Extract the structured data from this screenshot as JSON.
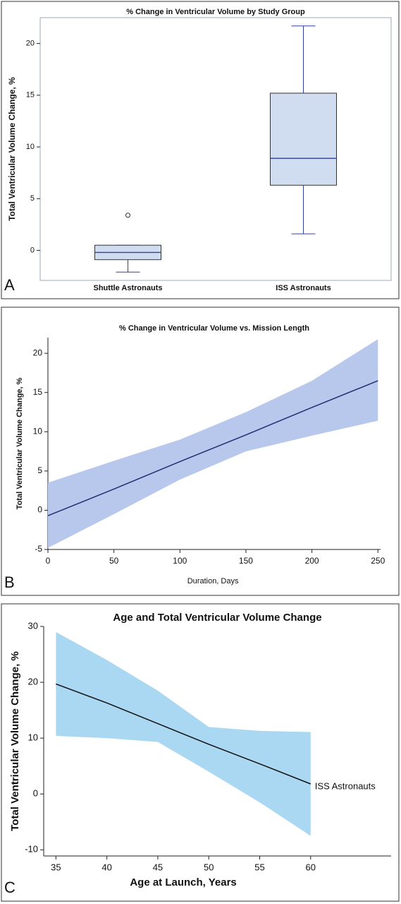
{
  "chart_data": [
    {
      "type": "box",
      "title": "% Change in Ventricular Volume by Study Group",
      "y_label": "Total Ventricular Volume Change, %",
      "panel_label": "A",
      "categories": [
        "Shuttle Astronauts",
        "ISS Astronauts"
      ],
      "boxes": [
        {
          "min": -2.1,
          "q1": -0.9,
          "median": -0.2,
          "q3": 0.5,
          "max": 0.5,
          "outliers": [
            3.4
          ]
        },
        {
          "min": 1.6,
          "q1": 6.3,
          "median": 8.9,
          "q3": 15.2,
          "max": 21.7,
          "outliers": []
        }
      ],
      "color": "#d0dcf0",
      "median_color": "#3040a0",
      "ylim": [
        -2.9,
        22.5
      ],
      "yticks": [
        0,
        5,
        10,
        15,
        20
      ],
      "grid": false
    },
    {
      "type": "line",
      "title": "% Change in Ventricular Volume vs. Mission Length",
      "x_label": "Duration, Days",
      "y_label": "Total Ventricular Volume Change, %",
      "panel_label": "B",
      "x": [
        0,
        50,
        100,
        150,
        200,
        250
      ],
      "values": [
        -0.7,
        2.7,
        6.2,
        9.6,
        13.1,
        16.5
      ],
      "band_upper": [
        3.5,
        6.3,
        9,
        12.5,
        16.5,
        21.8
      ],
      "band_lower": [
        -4.8,
        -0.5,
        3.9,
        7.5,
        9.5,
        11.4
      ],
      "color": "#1f2f6f",
      "band_color": "#b7c8ec",
      "xlim": [
        0,
        252
      ],
      "xticks": [
        0,
        50,
        100,
        150,
        200,
        250
      ],
      "ylim": [
        -5,
        22
      ],
      "yticks": [
        -5,
        0,
        5,
        10,
        15,
        20
      ],
      "grid": false
    },
    {
      "type": "line",
      "title": "Age and Total Ventricular Volume Change",
      "x_label": "Age at Launch, Years",
      "y_label": "Total Ventricular Volume Change, %",
      "panel_label": "C",
      "annotation": "ISS Astronauts",
      "x": [
        35,
        40,
        45,
        50,
        55,
        60
      ],
      "values": [
        19.7,
        16.3,
        12.6,
        8.9,
        5.4,
        1.8
      ],
      "band_upper": [
        29,
        24,
        18.5,
        12,
        11.3,
        11.1
      ],
      "band_lower": [
        10.4,
        10,
        9.3,
        4,
        -1.5,
        -7.5
      ],
      "color": "#111111",
      "band_color": "#aad8f2",
      "xlim": [
        33.8,
        67.9
      ],
      "xticks": [
        35,
        40,
        45,
        50,
        55,
        60
      ],
      "ylim": [
        -11.1,
        30
      ],
      "yticks": [
        -10,
        0,
        10,
        20,
        30
      ],
      "grid": false
    }
  ]
}
